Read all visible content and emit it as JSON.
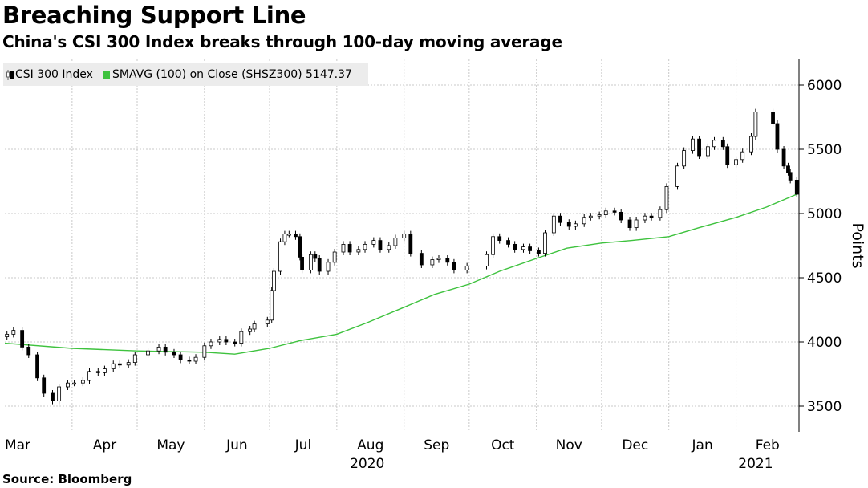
{
  "title": "Breaching Support Line",
  "subtitle": "China's CSI 300 Index breaks through 100-day moving average",
  "source": "Source: Bloomberg",
  "colors": {
    "candle": "#000000",
    "sma": "#3ec23e",
    "grid": "#c8c8c8",
    "legend_bg": "#ececec"
  },
  "legend": {
    "csi_label": "CSI 300 Index",
    "sma_label": "SMAVG (100)  on Close (SHSZ300) 5147.37"
  },
  "chart_data": {
    "type": "line",
    "ylabel": "Points",
    "ylim": [
      3300,
      6200
    ],
    "yticks": [
      "3500",
      "4000",
      "4500",
      "5000",
      "5500",
      "6000"
    ],
    "x_range": [
      "2020-03-01",
      "2021-03-02"
    ],
    "month_ticks": [
      {
        "label": "Mar",
        "date": "2020-03-01"
      },
      {
        "label": "Apr",
        "date": "2020-04-01"
      },
      {
        "label": "May",
        "date": "2020-05-01"
      },
      {
        "label": "Jun",
        "date": "2020-06-01"
      },
      {
        "label": "Jul",
        "date": "2020-07-01"
      },
      {
        "label": "Aug",
        "date": "2020-08-01"
      },
      {
        "label": "Sep",
        "date": "2020-09-01"
      },
      {
        "label": "Oct",
        "date": "2020-10-01"
      },
      {
        "label": "Nov",
        "date": "2020-11-01"
      },
      {
        "label": "Dec",
        "date": "2020-12-01"
      },
      {
        "label": "Jan",
        "date": "2021-01-01"
      },
      {
        "label": "Feb",
        "date": "2021-02-01"
      }
    ],
    "year_labels": [
      {
        "label": "2020",
        "date": "2020-08-15"
      },
      {
        "label": "2021",
        "date": "2021-02-10"
      }
    ],
    "grid": true,
    "legend_position": "top-left",
    "series": [
      {
        "name": "CSI 300 Index",
        "style": "candlestick",
        "points": [
          {
            "date": "2020-03-02",
            "value": 4060
          },
          {
            "date": "2020-03-05",
            "value": 4090
          },
          {
            "date": "2020-03-09",
            "value": 3960
          },
          {
            "date": "2020-03-12",
            "value": 3900
          },
          {
            "date": "2020-03-16",
            "value": 3720
          },
          {
            "date": "2020-03-19",
            "value": 3600
          },
          {
            "date": "2020-03-23",
            "value": 3540
          },
          {
            "date": "2020-03-26",
            "value": 3650
          },
          {
            "date": "2020-03-30",
            "value": 3680
          },
          {
            "date": "2020-04-02",
            "value": 3680
          },
          {
            "date": "2020-04-06",
            "value": 3700
          },
          {
            "date": "2020-04-09",
            "value": 3770
          },
          {
            "date": "2020-04-13",
            "value": 3760
          },
          {
            "date": "2020-04-16",
            "value": 3790
          },
          {
            "date": "2020-04-20",
            "value": 3830
          },
          {
            "date": "2020-04-23",
            "value": 3820
          },
          {
            "date": "2020-04-27",
            "value": 3840
          },
          {
            "date": "2020-04-30",
            "value": 3900
          },
          {
            "date": "2020-05-06",
            "value": 3930
          },
          {
            "date": "2020-05-11",
            "value": 3960
          },
          {
            "date": "2020-05-14",
            "value": 3920
          },
          {
            "date": "2020-05-18",
            "value": 3900
          },
          {
            "date": "2020-05-21",
            "value": 3860
          },
          {
            "date": "2020-05-25",
            "value": 3850
          },
          {
            "date": "2020-05-28",
            "value": 3880
          },
          {
            "date": "2020-06-01",
            "value": 3970
          },
          {
            "date": "2020-06-04",
            "value": 4000
          },
          {
            "date": "2020-06-08",
            "value": 4020
          },
          {
            "date": "2020-06-11",
            "value": 4000
          },
          {
            "date": "2020-06-15",
            "value": 3990
          },
          {
            "date": "2020-06-18",
            "value": 4080
          },
          {
            "date": "2020-06-22",
            "value": 4100
          },
          {
            "date": "2020-06-24",
            "value": 4140
          },
          {
            "date": "2020-06-30",
            "value": 4170
          },
          {
            "date": "2020-07-02",
            "value": 4400
          },
          {
            "date": "2020-07-03",
            "value": 4550
          },
          {
            "date": "2020-07-06",
            "value": 4780
          },
          {
            "date": "2020-07-08",
            "value": 4840
          },
          {
            "date": "2020-07-10",
            "value": 4840
          },
          {
            "date": "2020-07-13",
            "value": 4820
          },
          {
            "date": "2020-07-15",
            "value": 4660
          },
          {
            "date": "2020-07-16",
            "value": 4560
          },
          {
            "date": "2020-07-20",
            "value": 4680
          },
          {
            "date": "2020-07-22",
            "value": 4650
          },
          {
            "date": "2020-07-24",
            "value": 4550
          },
          {
            "date": "2020-07-28",
            "value": 4620
          },
          {
            "date": "2020-07-31",
            "value": 4700
          },
          {
            "date": "2020-08-04",
            "value": 4760
          },
          {
            "date": "2020-08-07",
            "value": 4700
          },
          {
            "date": "2020-08-11",
            "value": 4720
          },
          {
            "date": "2020-08-14",
            "value": 4760
          },
          {
            "date": "2020-08-18",
            "value": 4790
          },
          {
            "date": "2020-08-21",
            "value": 4720
          },
          {
            "date": "2020-08-25",
            "value": 4750
          },
          {
            "date": "2020-08-28",
            "value": 4810
          },
          {
            "date": "2020-09-01",
            "value": 4840
          },
          {
            "date": "2020-09-04",
            "value": 4690
          },
          {
            "date": "2020-09-09",
            "value": 4600
          },
          {
            "date": "2020-09-14",
            "value": 4640
          },
          {
            "date": "2020-09-17",
            "value": 4650
          },
          {
            "date": "2020-09-21",
            "value": 4620
          },
          {
            "date": "2020-09-24",
            "value": 4560
          },
          {
            "date": "2020-09-30",
            "value": 4590
          },
          {
            "date": "2020-10-09",
            "value": 4680
          },
          {
            "date": "2020-10-12",
            "value": 4820
          },
          {
            "date": "2020-10-15",
            "value": 4790
          },
          {
            "date": "2020-10-19",
            "value": 4760
          },
          {
            "date": "2020-10-22",
            "value": 4720
          },
          {
            "date": "2020-10-26",
            "value": 4740
          },
          {
            "date": "2020-10-29",
            "value": 4710
          },
          {
            "date": "2020-11-02",
            "value": 4690
          },
          {
            "date": "2020-11-05",
            "value": 4850
          },
          {
            "date": "2020-11-09",
            "value": 4980
          },
          {
            "date": "2020-11-12",
            "value": 4930
          },
          {
            "date": "2020-11-16",
            "value": 4900
          },
          {
            "date": "2020-11-19",
            "value": 4920
          },
          {
            "date": "2020-11-23",
            "value": 4970
          },
          {
            "date": "2020-11-26",
            "value": 4980
          },
          {
            "date": "2020-11-30",
            "value": 4990
          },
          {
            "date": "2020-12-03",
            "value": 5020
          },
          {
            "date": "2020-12-07",
            "value": 5010
          },
          {
            "date": "2020-12-10",
            "value": 4950
          },
          {
            "date": "2020-12-14",
            "value": 4890
          },
          {
            "date": "2020-12-17",
            "value": 4950
          },
          {
            "date": "2020-12-21",
            "value": 4980
          },
          {
            "date": "2020-12-24",
            "value": 4970
          },
          {
            "date": "2020-12-28",
            "value": 5030
          },
          {
            "date": "2020-12-31",
            "value": 5210
          },
          {
            "date": "2021-01-05",
            "value": 5370
          },
          {
            "date": "2021-01-08",
            "value": 5490
          },
          {
            "date": "2021-01-12",
            "value": 5580
          },
          {
            "date": "2021-01-15",
            "value": 5450
          },
          {
            "date": "2021-01-19",
            "value": 5520
          },
          {
            "date": "2021-01-22",
            "value": 5570
          },
          {
            "date": "2021-01-26",
            "value": 5520
          },
          {
            "date": "2021-01-28",
            "value": 5380
          },
          {
            "date": "2021-02-01",
            "value": 5420
          },
          {
            "date": "2021-02-04",
            "value": 5480
          },
          {
            "date": "2021-02-08",
            "value": 5600
          },
          {
            "date": "2021-02-10",
            "value": 5790
          },
          {
            "date": "2021-02-18",
            "value": 5700
          },
          {
            "date": "2021-02-20",
            "value": 5500
          },
          {
            "date": "2021-02-23",
            "value": 5370
          },
          {
            "date": "2021-02-25",
            "value": 5320
          },
          {
            "date": "2021-02-26",
            "value": 5260
          },
          {
            "date": "2021-03-01",
            "value": 5150
          }
        ]
      },
      {
        "name": "SMAVG (100)  on Close (SHSZ300) 5147.37",
        "style": "line",
        "points": [
          {
            "date": "2020-03-01",
            "value": 3990
          },
          {
            "date": "2020-04-01",
            "value": 3950
          },
          {
            "date": "2020-05-01",
            "value": 3930
          },
          {
            "date": "2020-06-01",
            "value": 3920
          },
          {
            "date": "2020-06-15",
            "value": 3905
          },
          {
            "date": "2020-07-01",
            "value": 3950
          },
          {
            "date": "2020-07-15",
            "value": 4010
          },
          {
            "date": "2020-08-01",
            "value": 4060
          },
          {
            "date": "2020-08-15",
            "value": 4150
          },
          {
            "date": "2020-09-01",
            "value": 4270
          },
          {
            "date": "2020-09-15",
            "value": 4370
          },
          {
            "date": "2020-10-01",
            "value": 4450
          },
          {
            "date": "2020-10-15",
            "value": 4550
          },
          {
            "date": "2020-11-01",
            "value": 4650
          },
          {
            "date": "2020-11-15",
            "value": 4730
          },
          {
            "date": "2020-12-01",
            "value": 4770
          },
          {
            "date": "2020-12-15",
            "value": 4790
          },
          {
            "date": "2021-01-01",
            "value": 4820
          },
          {
            "date": "2021-01-15",
            "value": 4890
          },
          {
            "date": "2021-02-01",
            "value": 4970
          },
          {
            "date": "2021-02-15",
            "value": 5050
          },
          {
            "date": "2021-03-01",
            "value": 5150
          }
        ]
      }
    ]
  }
}
